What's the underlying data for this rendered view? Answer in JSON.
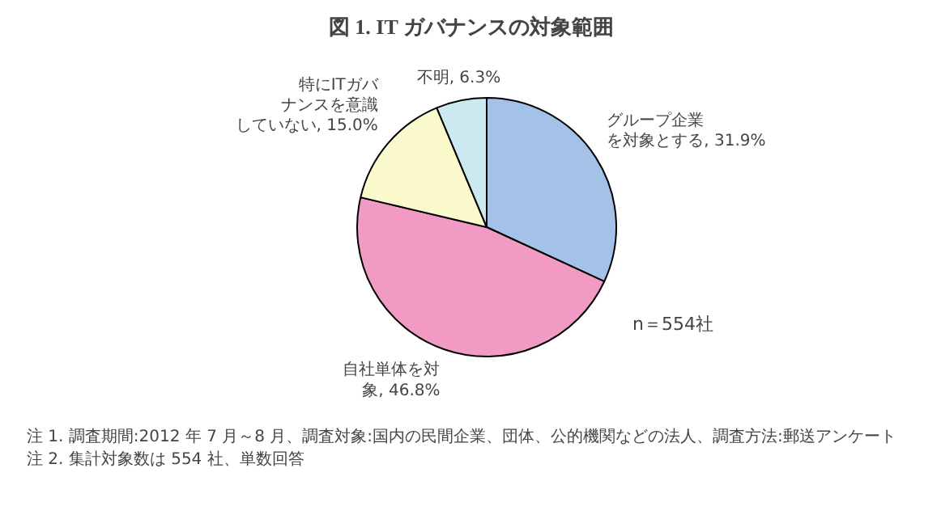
{
  "chart_data": {
    "type": "pie",
    "title": "図 1. IT ガバナンスの対象範囲",
    "categories": [
      "グループ企業を対象とする",
      "自社単体を対象",
      "特にITガバナンスを意識していない",
      "不明"
    ],
    "values": [
      31.9,
      46.8,
      15.0,
      6.3
    ],
    "value_labels": [
      "31.9%",
      "46.8%",
      "15.0%",
      "6.3%"
    ],
    "colors": [
      "#a4c2e8",
      "#f09ac4",
      "#fafacd",
      "#cde9f0"
    ],
    "annotations": [
      "n＝554社",
      "注 1. 調査期間:2012 年 7 月～8 月、調査対象:国内の民間企業、団体、公的機関などの法人、調査方法:郵送アンケート",
      "注 2. 集計対象数は 554 社、単数回答"
    ]
  }
}
